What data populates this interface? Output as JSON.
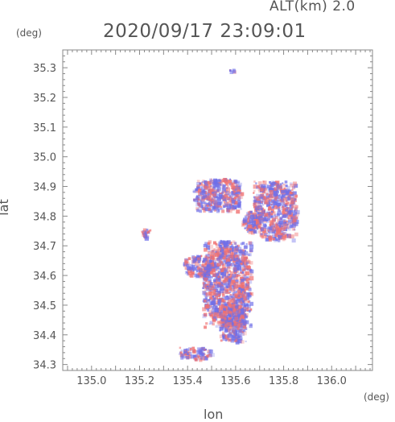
{
  "header": {
    "altitude_label": "ALT(km) 2.0",
    "timestamp": "2020/09/17 23:09:01"
  },
  "chart_data": {
    "type": "heatmap",
    "title": "2020/09/17 23:09:01",
    "subtitle": "ALT(km) 2.0",
    "xlabel": "lon",
    "ylabel": "lat",
    "x_unit": "(deg)",
    "y_unit": "(deg)",
    "xlim": [
      134.88,
      136.17
    ],
    "ylim": [
      34.28,
      35.36
    ],
    "x_ticks": [
      "135.0",
      "135.2",
      "135.4",
      "135.6",
      "135.8",
      "136.0"
    ],
    "y_ticks": [
      "34.3",
      "34.4",
      "34.5",
      "34.6",
      "34.7",
      "34.8",
      "34.9",
      "35.0",
      "35.1",
      "35.2",
      "35.3"
    ],
    "grid": false,
    "colors": {
      "positive": "#f07070",
      "negative": "#6f6fe8",
      "frame": "#888888"
    },
    "echo_regions": [
      {
        "name": "main-cluster",
        "lon": [
          135.46,
          135.66
        ],
        "lat": [
          34.43,
          34.72
        ]
      },
      {
        "name": "west-lobe",
        "lon": [
          135.38,
          135.5
        ],
        "lat": [
          34.6,
          34.67
        ]
      },
      {
        "name": "southern-tail",
        "lon": [
          135.53,
          135.64
        ],
        "lat": [
          34.38,
          34.51
        ]
      },
      {
        "name": "northeast-band",
        "lon": [
          135.67,
          135.85
        ],
        "lat": [
          34.72,
          34.92
        ]
      },
      {
        "name": "northeast-fringe",
        "lon": [
          135.62,
          135.7
        ],
        "lat": [
          34.75,
          34.82
        ]
      },
      {
        "name": "north-fragments",
        "lon": [
          135.42,
          135.62
        ],
        "lat": [
          34.82,
          34.93
        ]
      },
      {
        "name": "west-spot",
        "lon": [
          135.2,
          135.24
        ],
        "lat": [
          34.73,
          34.76
        ]
      },
      {
        "name": "south-fragments",
        "lon": [
          135.36,
          135.5
        ],
        "lat": [
          34.32,
          34.36
        ]
      },
      {
        "name": "isolated-echo",
        "lon": [
          135.57,
          135.59
        ],
        "lat": [
          35.29,
          35.3
        ]
      }
    ]
  }
}
